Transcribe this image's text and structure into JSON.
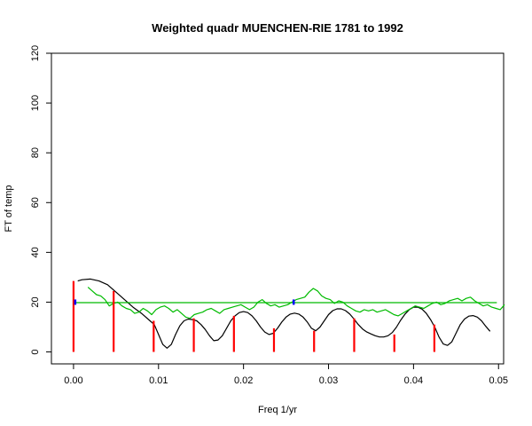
{
  "chart_data": {
    "type": "line",
    "title": "Weighted quadr MUENCHEN-RIE 1781 to 1992",
    "xlabel": "Freq 1/yr",
    "ylabel": "FT of temp",
    "xlim": [
      -0.0026,
      0.0506
    ],
    "ylim": [
      -4.8,
      120
    ],
    "x_ticks": [
      "0.00",
      "0.01",
      "0.02",
      "0.03",
      "0.04",
      "0.05"
    ],
    "y_ticks": [
      "0",
      "20",
      "40",
      "60",
      "80",
      "100",
      "120"
    ],
    "grid": false,
    "series": [
      {
        "style": "line",
        "color": "#000000",
        "points": [
          [
            0.0005,
            28.5
          ],
          [
            0.001,
            29
          ],
          [
            0.002,
            29.3
          ],
          [
            0.003,
            28.5
          ],
          [
            0.004,
            27
          ],
          [
            0.005,
            24
          ],
          [
            0.006,
            21
          ],
          [
            0.007,
            18
          ],
          [
            0.008,
            15.5
          ],
          [
            0.009,
            12.5
          ],
          [
            0.0095,
            11
          ],
          [
            0.01,
            7
          ],
          [
            0.0105,
            3
          ],
          [
            0.011,
            1.5
          ],
          [
            0.0115,
            3
          ],
          [
            0.012,
            7
          ],
          [
            0.0125,
            10.5
          ],
          [
            0.013,
            12.5
          ],
          [
            0.0135,
            13.2
          ],
          [
            0.014,
            13
          ],
          [
            0.0145,
            12.5
          ],
          [
            0.015,
            11
          ],
          [
            0.0155,
            9
          ],
          [
            0.016,
            6.5
          ],
          [
            0.0165,
            4.5
          ],
          [
            0.017,
            4.8
          ],
          [
            0.0175,
            6.5
          ],
          [
            0.018,
            9.5
          ],
          [
            0.0185,
            12.5
          ],
          [
            0.019,
            14.5
          ],
          [
            0.0195,
            15.8
          ],
          [
            0.02,
            16.2
          ],
          [
            0.0205,
            15.8
          ],
          [
            0.021,
            14.5
          ],
          [
            0.0215,
            12.5
          ],
          [
            0.022,
            10
          ],
          [
            0.0225,
            8
          ],
          [
            0.023,
            7
          ],
          [
            0.0235,
            7.5
          ],
          [
            0.024,
            9.5
          ],
          [
            0.0245,
            12
          ],
          [
            0.025,
            14
          ],
          [
            0.0255,
            15.2
          ],
          [
            0.026,
            15.6
          ],
          [
            0.0265,
            15.2
          ],
          [
            0.027,
            14
          ],
          [
            0.0275,
            12
          ],
          [
            0.028,
            9.5
          ],
          [
            0.0285,
            8.5
          ],
          [
            0.029,
            10
          ],
          [
            0.0295,
            12.5
          ],
          [
            0.03,
            15
          ],
          [
            0.0305,
            16.6
          ],
          [
            0.031,
            17.3
          ],
          [
            0.0315,
            17.3
          ],
          [
            0.032,
            16.6
          ],
          [
            0.0325,
            15.2
          ],
          [
            0.033,
            13.2
          ],
          [
            0.0335,
            11
          ],
          [
            0.034,
            9.2
          ],
          [
            0.0345,
            8
          ],
          [
            0.035,
            7.2
          ],
          [
            0.0355,
            6.5
          ],
          [
            0.036,
            6
          ],
          [
            0.0365,
            6
          ],
          [
            0.037,
            6.5
          ],
          [
            0.0375,
            7.8
          ],
          [
            0.038,
            10
          ],
          [
            0.0385,
            12.8
          ],
          [
            0.039,
            15.2
          ],
          [
            0.0395,
            17
          ],
          [
            0.04,
            18
          ],
          [
            0.0405,
            18
          ],
          [
            0.041,
            17.2
          ],
          [
            0.0415,
            15.5
          ],
          [
            0.042,
            13
          ],
          [
            0.0425,
            10
          ],
          [
            0.043,
            6
          ],
          [
            0.0435,
            3.2
          ],
          [
            0.044,
            2.6
          ],
          [
            0.0445,
            4
          ],
          [
            0.045,
            7.5
          ],
          [
            0.0455,
            11
          ],
          [
            0.046,
            13.2
          ],
          [
            0.0465,
            14.4
          ],
          [
            0.047,
            14.6
          ],
          [
            0.0475,
            14
          ],
          [
            0.048,
            12.5
          ],
          [
            0.0485,
            10.3
          ],
          [
            0.049,
            8.3
          ]
        ]
      },
      {
        "style": "line",
        "color": "#00bb00",
        "points": [
          [
            0.0017,
            26
          ],
          [
            0.0022,
            24.5
          ],
          [
            0.0027,
            23
          ],
          [
            0.0032,
            22.5
          ],
          [
            0.0037,
            21
          ],
          [
            0.0042,
            18.5
          ],
          [
            0.0047,
            19.5
          ],
          [
            0.0052,
            20
          ],
          [
            0.0057,
            18.5
          ],
          [
            0.0062,
            17.5
          ],
          [
            0.0067,
            17
          ],
          [
            0.0072,
            15.5
          ],
          [
            0.0077,
            16
          ],
          [
            0.0082,
            17.5
          ],
          [
            0.0087,
            16.5
          ],
          [
            0.0092,
            15
          ],
          [
            0.0097,
            17
          ],
          [
            0.0102,
            18
          ],
          [
            0.0107,
            18.5
          ],
          [
            0.0112,
            17.5
          ],
          [
            0.0117,
            16
          ],
          [
            0.0122,
            17
          ],
          [
            0.0127,
            15.5
          ],
          [
            0.0132,
            14
          ],
          [
            0.0137,
            13.5
          ],
          [
            0.0142,
            15
          ],
          [
            0.0147,
            15.5
          ],
          [
            0.0152,
            16
          ],
          [
            0.0157,
            17
          ],
          [
            0.0162,
            17.5
          ],
          [
            0.0167,
            16.5
          ],
          [
            0.0172,
            15.5
          ],
          [
            0.0177,
            17
          ],
          [
            0.0182,
            17.5
          ],
          [
            0.0187,
            18
          ],
          [
            0.0192,
            18.5
          ],
          [
            0.0197,
            19
          ],
          [
            0.0202,
            18
          ],
          [
            0.0207,
            17
          ],
          [
            0.0212,
            18
          ],
          [
            0.0217,
            20
          ],
          [
            0.0222,
            21
          ],
          [
            0.0227,
            19.5
          ],
          [
            0.0232,
            18.5
          ],
          [
            0.0237,
            19
          ],
          [
            0.0242,
            18
          ],
          [
            0.0247,
            18.5
          ],
          [
            0.0252,
            19
          ],
          [
            0.0257,
            20
          ],
          [
            0.0262,
            21
          ],
          [
            0.0267,
            21.5
          ],
          [
            0.0272,
            22
          ],
          [
            0.0277,
            24
          ],
          [
            0.0282,
            25.5
          ],
          [
            0.0287,
            24.5
          ],
          [
            0.0292,
            22.5
          ],
          [
            0.0297,
            21.5
          ],
          [
            0.0302,
            21
          ],
          [
            0.0307,
            19.5
          ],
          [
            0.0312,
            20.5
          ],
          [
            0.0317,
            20
          ],
          [
            0.0322,
            18.5
          ],
          [
            0.0327,
            17.5
          ],
          [
            0.0332,
            16.5
          ],
          [
            0.0337,
            16
          ],
          [
            0.0342,
            17
          ],
          [
            0.0347,
            16.5
          ],
          [
            0.0352,
            17
          ],
          [
            0.0357,
            16
          ],
          [
            0.0362,
            16.5
          ],
          [
            0.0367,
            17
          ],
          [
            0.0372,
            16
          ],
          [
            0.0377,
            15
          ],
          [
            0.0382,
            14.5
          ],
          [
            0.0387,
            15.5
          ],
          [
            0.0392,
            16.5
          ],
          [
            0.0397,
            17.5
          ],
          [
            0.0402,
            18.5
          ],
          [
            0.0407,
            18
          ],
          [
            0.0412,
            17.5
          ],
          [
            0.0417,
            18.5
          ],
          [
            0.0422,
            19.5
          ],
          [
            0.0427,
            20
          ],
          [
            0.0432,
            19
          ],
          [
            0.0437,
            19.5
          ],
          [
            0.0442,
            20.5
          ],
          [
            0.0447,
            21
          ],
          [
            0.0452,
            21.5
          ],
          [
            0.0457,
            20.5
          ],
          [
            0.0462,
            21.5
          ],
          [
            0.0467,
            22
          ],
          [
            0.0472,
            20.5
          ],
          [
            0.0477,
            19.5
          ],
          [
            0.0482,
            18.5
          ],
          [
            0.0487,
            19
          ],
          [
            0.0492,
            18
          ],
          [
            0.0497,
            17.5
          ],
          [
            0.0502,
            17
          ],
          [
            0.0507,
            19
          ]
        ]
      },
      {
        "style": "hline",
        "color": "#00bb00",
        "y": 19.8,
        "x_range": [
          0.0,
          0.0498
        ]
      },
      {
        "style": "spikes",
        "color": "#ff0000",
        "x": [
          0.0,
          0.00472,
          0.00943,
          0.01415,
          0.01887,
          0.02358,
          0.0283,
          0.03302,
          0.03774,
          0.04245
        ],
        "values": [
          28.5,
          24.5,
          12.5,
          13.5,
          14.5,
          9.5,
          8.5,
          13.5,
          7.0,
          11.0
        ]
      },
      {
        "style": "marks",
        "color": "#0000ff",
        "points": [
          [
            0.0002,
            20
          ],
          [
            0.0259,
            20
          ]
        ]
      }
    ]
  }
}
